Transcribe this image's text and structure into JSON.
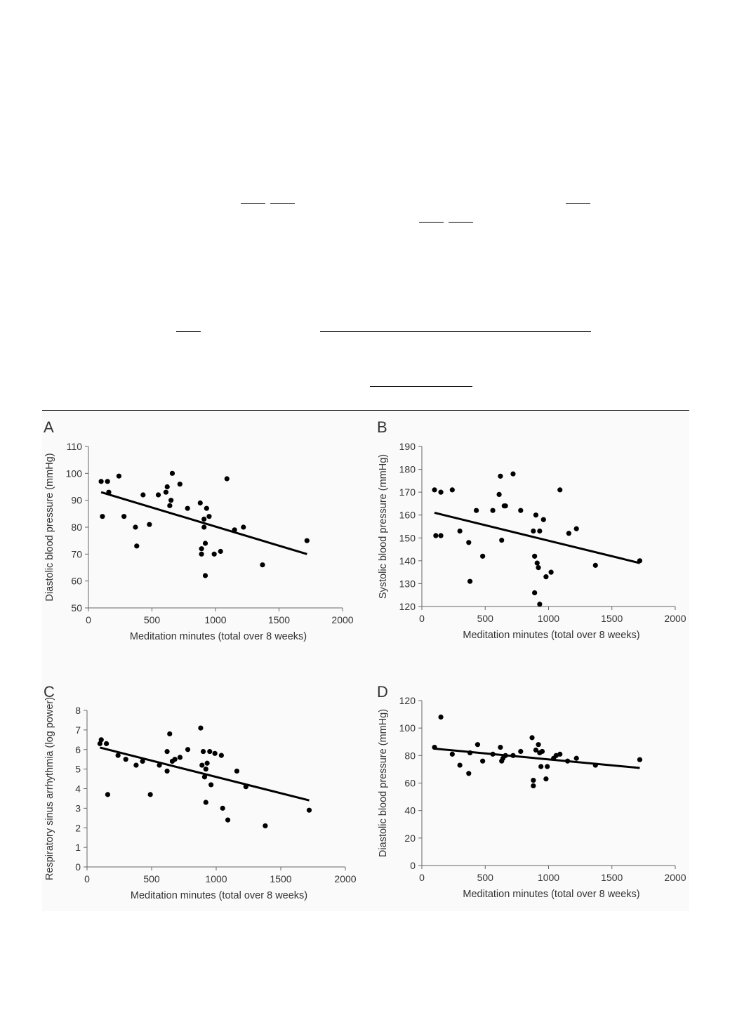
{
  "chart_data": [
    {
      "panel": "A",
      "type": "scatter",
      "xlabel": "Meditation minutes (total over 8 weeks)",
      "ylabel": "Diastolic blood pressure (mmHg)",
      "xlim": [
        0,
        2000
      ],
      "ylim": [
        50,
        110
      ],
      "xticks": [
        0,
        500,
        1000,
        1500,
        2000
      ],
      "yticks": [
        50,
        60,
        70,
        80,
        90,
        100,
        110
      ],
      "grid": false,
      "points": [
        [
          100,
          97
        ],
        [
          110,
          84
        ],
        [
          150,
          97
        ],
        [
          160,
          93
        ],
        [
          240,
          99
        ],
        [
          280,
          84
        ],
        [
          370,
          80
        ],
        [
          380,
          73
        ],
        [
          430,
          92
        ],
        [
          480,
          81
        ],
        [
          550,
          92
        ],
        [
          610,
          93
        ],
        [
          620,
          95
        ],
        [
          640,
          88
        ],
        [
          650,
          90
        ],
        [
          660,
          100
        ],
        [
          720,
          96
        ],
        [
          780,
          87
        ],
        [
          880,
          89
        ],
        [
          890,
          72
        ],
        [
          890,
          70
        ],
        [
          910,
          83
        ],
        [
          910,
          80
        ],
        [
          920,
          62
        ],
        [
          920,
          74
        ],
        [
          930,
          87
        ],
        [
          950,
          84
        ],
        [
          990,
          70
        ],
        [
          1040,
          71
        ],
        [
          1090,
          98
        ],
        [
          1150,
          79
        ],
        [
          1220,
          80
        ],
        [
          1370,
          66
        ],
        [
          1720,
          75
        ]
      ],
      "trend": [
        [
          100,
          93
        ],
        [
          1720,
          70
        ]
      ]
    },
    {
      "panel": "B",
      "type": "scatter",
      "xlabel": "Meditation minutes (total over 8 weeks)",
      "ylabel": "Systolic blood pressure (mmHg)",
      "xlim": [
        0,
        2000
      ],
      "ylim": [
        120,
        190
      ],
      "xticks": [
        0,
        500,
        1000,
        1500,
        2000
      ],
      "yticks": [
        120,
        130,
        140,
        150,
        160,
        170,
        180,
        190
      ],
      "grid": false,
      "points": [
        [
          100,
          171
        ],
        [
          110,
          151
        ],
        [
          150,
          151
        ],
        [
          150,
          170
        ],
        [
          240,
          171
        ],
        [
          300,
          153
        ],
        [
          370,
          148
        ],
        [
          380,
          131
        ],
        [
          430,
          162
        ],
        [
          480,
          142
        ],
        [
          560,
          162
        ],
        [
          610,
          169
        ],
        [
          620,
          177
        ],
        [
          630,
          149
        ],
        [
          650,
          164
        ],
        [
          660,
          164
        ],
        [
          720,
          178
        ],
        [
          780,
          162
        ],
        [
          880,
          153
        ],
        [
          890,
          142
        ],
        [
          890,
          126
        ],
        [
          900,
          160
        ],
        [
          910,
          139
        ],
        [
          920,
          137
        ],
        [
          930,
          121
        ],
        [
          930,
          153
        ],
        [
          960,
          158
        ],
        [
          980,
          133
        ],
        [
          1020,
          135
        ],
        [
          1090,
          171
        ],
        [
          1160,
          152
        ],
        [
          1220,
          154
        ],
        [
          1370,
          138
        ],
        [
          1720,
          140
        ]
      ],
      "trend": [
        [
          100,
          161
        ],
        [
          1720,
          139
        ]
      ]
    },
    {
      "panel": "C",
      "type": "scatter",
      "xlabel": "Meditation minutes (total over 8 weeks)",
      "ylabel": "Respiratory sinus arrhythmia (log power)",
      "xlim": [
        0,
        2000
      ],
      "ylim": [
        0,
        8
      ],
      "xticks": [
        0,
        500,
        1000,
        1500,
        2000
      ],
      "yticks": [
        0,
        1,
        2,
        3,
        4,
        5,
        6,
        7,
        8
      ],
      "grid": false,
      "points": [
        [
          100,
          6.3
        ],
        [
          110,
          6.5
        ],
        [
          150,
          6.3
        ],
        [
          160,
          3.7
        ],
        [
          240,
          5.7
        ],
        [
          300,
          5.5
        ],
        [
          380,
          5.2
        ],
        [
          430,
          5.4
        ],
        [
          490,
          3.7
        ],
        [
          560,
          5.2
        ],
        [
          620,
          4.9
        ],
        [
          620,
          5.9
        ],
        [
          640,
          6.8
        ],
        [
          660,
          5.4
        ],
        [
          680,
          5.5
        ],
        [
          720,
          5.6
        ],
        [
          780,
          6.0
        ],
        [
          880,
          7.1
        ],
        [
          890,
          5.2
        ],
        [
          900,
          5.9
        ],
        [
          910,
          4.6
        ],
        [
          920,
          3.3
        ],
        [
          920,
          5.0
        ],
        [
          930,
          5.3
        ],
        [
          950,
          5.9
        ],
        [
          960,
          4.2
        ],
        [
          990,
          5.8
        ],
        [
          1040,
          5.7
        ],
        [
          1050,
          3.0
        ],
        [
          1090,
          2.4
        ],
        [
          1160,
          4.9
        ],
        [
          1230,
          4.1
        ],
        [
          1380,
          2.1
        ],
        [
          1720,
          2.9
        ]
      ],
      "trend": [
        [
          100,
          6.1
        ],
        [
          1720,
          3.4
        ]
      ]
    },
    {
      "panel": "D",
      "type": "scatter",
      "xlabel": "Meditation minutes (total over 8 weeks)",
      "ylabel": "Diastolic blood pressure (mmHg)",
      "xlim": [
        0,
        2000
      ],
      "ylim": [
        0,
        120
      ],
      "xticks": [
        0,
        500,
        1000,
        1500,
        2000
      ],
      "yticks": [
        0,
        20,
        40,
        60,
        80,
        100,
        120
      ],
      "grid": false,
      "points": [
        [
          100,
          86
        ],
        [
          150,
          108
        ],
        [
          240,
          81
        ],
        [
          300,
          73
        ],
        [
          370,
          67
        ],
        [
          380,
          82
        ],
        [
          440,
          88
        ],
        [
          480,
          76
        ],
        [
          560,
          81
        ],
        [
          620,
          86
        ],
        [
          630,
          76
        ],
        [
          640,
          78
        ],
        [
          660,
          80
        ],
        [
          720,
          80
        ],
        [
          780,
          83
        ],
        [
          870,
          93
        ],
        [
          880,
          62
        ],
        [
          880,
          58
        ],
        [
          900,
          84
        ],
        [
          920,
          88
        ],
        [
          930,
          82
        ],
        [
          940,
          72
        ],
        [
          950,
          83
        ],
        [
          980,
          63
        ],
        [
          990,
          72
        ],
        [
          1040,
          78
        ],
        [
          1060,
          80
        ],
        [
          1090,
          81
        ],
        [
          1150,
          76
        ],
        [
          1220,
          78
        ],
        [
          1370,
          73
        ],
        [
          1720,
          77
        ]
      ],
      "trend": [
        [
          100,
          85
        ],
        [
          1720,
          71
        ]
      ]
    }
  ]
}
